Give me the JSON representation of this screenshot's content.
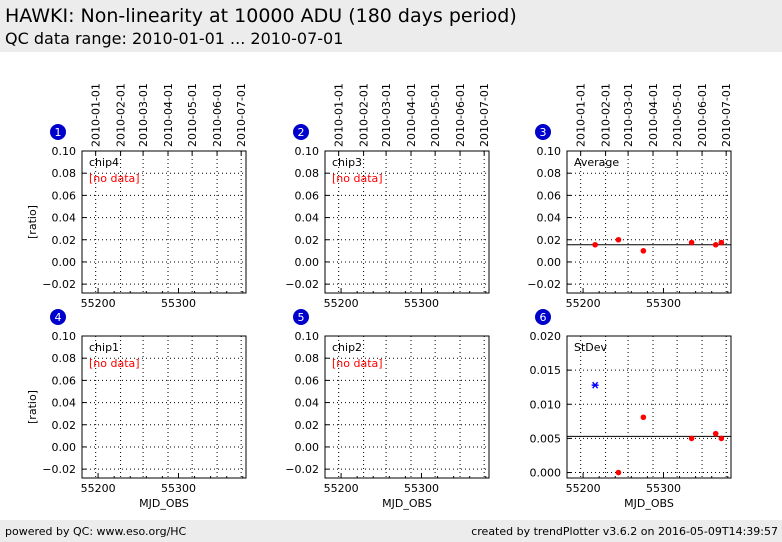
{
  "header": {
    "title": "HAWKI: Non-linearity at 10000 ADU (180 days period)",
    "subtitle": "QC data range: 2010-01-01 ... 2010-07-01"
  },
  "footer": {
    "left": "powered by QC: www.eso.org/HC",
    "right": "created by trendPlotter v3.6.2 on 2016-05-09T14:39:57"
  },
  "colors": {
    "header_bg": "#ececec",
    "badge": "#0000cc",
    "data_point": "#ff0000",
    "outlier_point": "#0000ff",
    "no_data_text": "#ff0000"
  },
  "chart_data": [
    {
      "type": "scatter",
      "panel": "1",
      "label": "chip4",
      "no_data_text": "[no data]",
      "ylabel": "[ratio]",
      "xlabel": "",
      "xlim": [
        55180,
        55384
      ],
      "ylim": [
        -0.028,
        0.1
      ],
      "x_ticks": [
        "55200",
        "55300"
      ],
      "y_ticks": [
        "0.10",
        "0.08",
        "0.06",
        "0.04",
        "0.02",
        "0.00",
        "−0.02"
      ],
      "top_date_ticks": [
        "2010-01-01",
        "2010-02-01",
        "2010-03-01",
        "2010-04-01",
        "2010-05-01",
        "2010-06-01",
        "2010-07-01"
      ],
      "points": [],
      "outliers": [],
      "reference_line": null
    },
    {
      "type": "scatter",
      "panel": "2",
      "label": "chip3",
      "no_data_text": "[no data]",
      "ylabel": "",
      "xlabel": "",
      "xlim": [
        55180,
        55384
      ],
      "ylim": [
        -0.028,
        0.1
      ],
      "x_ticks": [
        "55200",
        "55300"
      ],
      "y_ticks": [
        "0.10",
        "0.08",
        "0.06",
        "0.04",
        "0.02",
        "0.00",
        "−0.02"
      ],
      "top_date_ticks": [
        "2010-01-01",
        "2010-02-01",
        "2010-03-01",
        "2010-04-01",
        "2010-05-01",
        "2010-06-01",
        "2010-07-01"
      ],
      "points": [],
      "outliers": [],
      "reference_line": null
    },
    {
      "type": "scatter",
      "panel": "3",
      "label": "Average",
      "no_data_text": "",
      "ylabel": "",
      "xlabel": "",
      "xlim": [
        55180,
        55384
      ],
      "ylim": [
        -0.028,
        0.1
      ],
      "x_ticks": [
        "55200",
        "55300"
      ],
      "y_ticks": [
        "0.10",
        "0.08",
        "0.06",
        "0.04",
        "0.02",
        "0.00",
        "−0.02"
      ],
      "top_date_ticks": [
        "2010-01-01",
        "2010-02-01",
        "2010-03-01",
        "2010-04-01",
        "2010-05-01",
        "2010-06-01",
        "2010-07-01"
      ],
      "points": [
        [
          55215,
          0.0155
        ],
        [
          55244,
          0.02
        ],
        [
          55275,
          0.01
        ],
        [
          55335,
          0.0175
        ],
        [
          55365,
          0.0155
        ],
        [
          55372,
          0.0175
        ]
      ],
      "outliers": [],
      "reference_line": 0.0155
    },
    {
      "type": "scatter",
      "panel": "4",
      "label": "chip1",
      "no_data_text": "[no data]",
      "ylabel": "[ratio]",
      "xlabel": "MJD_OBS",
      "xlim": [
        55180,
        55384
      ],
      "ylim": [
        -0.028,
        0.1
      ],
      "x_ticks": [
        "55200",
        "55300"
      ],
      "y_ticks": [
        "0.10",
        "0.08",
        "0.06",
        "0.04",
        "0.02",
        "0.00",
        "−0.02"
      ],
      "top_date_ticks": [],
      "points": [],
      "outliers": [],
      "reference_line": null
    },
    {
      "type": "scatter",
      "panel": "5",
      "label": "chip2",
      "no_data_text": "[no data]",
      "ylabel": "",
      "xlabel": "MJD_OBS",
      "xlim": [
        55180,
        55384
      ],
      "ylim": [
        -0.028,
        0.1
      ],
      "x_ticks": [
        "55200",
        "55300"
      ],
      "y_ticks": [
        "0.10",
        "0.08",
        "0.06",
        "0.04",
        "0.02",
        "0.00",
        "−0.02"
      ],
      "top_date_ticks": [],
      "points": [],
      "outliers": [],
      "reference_line": null
    },
    {
      "type": "scatter",
      "panel": "6",
      "label": "StDev",
      "no_data_text": "",
      "ylabel": "",
      "xlabel": "MJD_OBS",
      "xlim": [
        55180,
        55384
      ],
      "ylim": [
        -0.0008,
        0.02
      ],
      "x_ticks": [
        "55200",
        "55300"
      ],
      "y_ticks": [
        "0.020",
        "0.015",
        "0.010",
        "0.005",
        "0.000"
      ],
      "top_date_ticks": [],
      "points": [
        [
          55244,
          0.0
        ],
        [
          55275,
          0.0081
        ],
        [
          55335,
          0.005
        ],
        [
          55365,
          0.0057
        ],
        [
          55372,
          0.005
        ]
      ],
      "outliers": [
        [
          55215,
          0.0128
        ]
      ],
      "reference_line": 0.0053
    }
  ]
}
